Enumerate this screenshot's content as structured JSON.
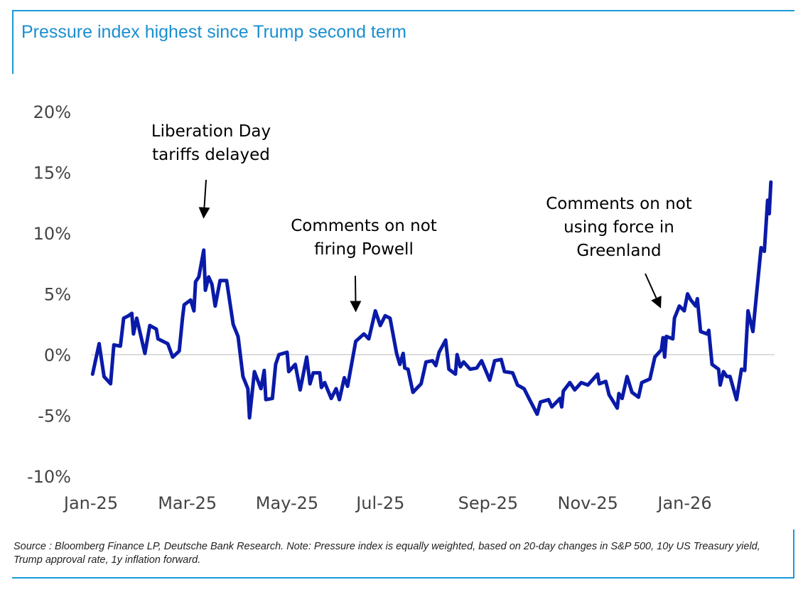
{
  "title": "Pressure index highest since Trump second term",
  "footnote": "Source : Bloomberg Finance LP, Deutsche Bank Research. Note: Pressure index is equally weighted, based on 20-day changes in S&P 500, 10y US Treasury yield, Trump approval rate, 1y inflation forward.",
  "colors": {
    "accent": "#1a9ad6",
    "line": "#0a1aa8",
    "zero_line": "#d0d0d0",
    "text": "#000000",
    "ticks": "#444444"
  },
  "chart_data": {
    "type": "line",
    "title": "Pressure index highest since Trump second term",
    "xlabel": "",
    "ylabel": "",
    "x_unit": "days since 2025-01-01",
    "xlim": [
      0,
      420
    ],
    "ylim": [
      -10,
      20
    ],
    "yticks": [
      {
        "value": 20,
        "label": "20%"
      },
      {
        "value": 15,
        "label": "15%"
      },
      {
        "value": 10,
        "label": "10%"
      },
      {
        "value": 5,
        "label": "5%"
      },
      {
        "value": 0,
        "label": "0%"
      },
      {
        "value": -5,
        "label": "-5%"
      },
      {
        "value": -10,
        "label": "-10%"
      }
    ],
    "xticks": [
      {
        "value": 0,
        "label": "Jan-25"
      },
      {
        "value": 59,
        "label": "Mar-25"
      },
      {
        "value": 120,
        "label": "May-25"
      },
      {
        "value": 181,
        "label": "Jul-25"
      },
      {
        "value": 243,
        "label": "Sep-25"
      },
      {
        "value": 304,
        "label": "Nov-25"
      },
      {
        "value": 365,
        "label": "Jan-26"
      }
    ],
    "grid": "zero line only",
    "series": [
      {
        "name": "Pressure index",
        "points": [
          [
            1,
            -1.6
          ],
          [
            5,
            0.9
          ],
          [
            8,
            -1.8
          ],
          [
            12,
            -2.4
          ],
          [
            14,
            0.8
          ],
          [
            18,
            0.7
          ],
          [
            20,
            3.0
          ],
          [
            23,
            3.2
          ],
          [
            25,
            3.4
          ],
          [
            26,
            1.7
          ],
          [
            28,
            3.0
          ],
          [
            33,
            0.1
          ],
          [
            36,
            2.4
          ],
          [
            40,
            2.1
          ],
          [
            41,
            1.3
          ],
          [
            47,
            0.9
          ],
          [
            50,
            -0.2
          ],
          [
            54,
            0.3
          ],
          [
            56,
            3.0
          ],
          [
            57,
            4.1
          ],
          [
            61,
            4.5
          ],
          [
            63,
            3.6
          ],
          [
            64,
            6.0
          ],
          [
            66,
            6.4
          ],
          [
            69,
            8.6
          ],
          [
            70,
            5.3
          ],
          [
            72,
            6.4
          ],
          [
            74,
            5.8
          ],
          [
            76,
            4.0
          ],
          [
            79,
            6.1
          ],
          [
            83,
            6.1
          ],
          [
            87,
            2.5
          ],
          [
            90,
            1.5
          ],
          [
            93,
            -1.8
          ],
          [
            96,
            -2.8
          ],
          [
            97,
            -5.2
          ],
          [
            100,
            -1.4
          ],
          [
            104,
            -2.8
          ],
          [
            106,
            -1.3
          ],
          [
            107,
            -3.7
          ],
          [
            111,
            -3.6
          ],
          [
            113,
            -0.8
          ],
          [
            115,
            0.0
          ],
          [
            120,
            0.2
          ],
          [
            121,
            -1.4
          ],
          [
            125,
            -0.8
          ],
          [
            128,
            -2.9
          ],
          [
            132,
            -0.2
          ],
          [
            134,
            -2.4
          ],
          [
            136,
            -1.5
          ],
          [
            140,
            -1.5
          ],
          [
            141,
            -2.7
          ],
          [
            143,
            -2.3
          ],
          [
            147,
            -3.6
          ],
          [
            150,
            -2.8
          ],
          [
            152,
            -3.7
          ],
          [
            155,
            -1.9
          ],
          [
            157,
            -2.6
          ],
          [
            162,
            1.1
          ],
          [
            167,
            1.7
          ],
          [
            170,
            1.3
          ],
          [
            174,
            3.6
          ],
          [
            177,
            2.4
          ],
          [
            180,
            3.2
          ],
          [
            183,
            3.0
          ],
          [
            187,
            0.1
          ],
          [
            189,
            -0.8
          ],
          [
            191,
            0.1
          ],
          [
            192,
            -1.1
          ],
          [
            194,
            -1.2
          ],
          [
            197,
            -3.1
          ],
          [
            202,
            -2.4
          ],
          [
            205,
            -0.6
          ],
          [
            209,
            -0.5
          ],
          [
            211,
            -0.9
          ],
          [
            213,
            0.2
          ],
          [
            217,
            1.2
          ],
          [
            219,
            -1.2
          ],
          [
            223,
            -1.6
          ],
          [
            224,
            0.0
          ],
          [
            226,
            -1.0
          ],
          [
            228,
            -0.6
          ],
          [
            232,
            -1.2
          ],
          [
            236,
            -1.1
          ],
          [
            239,
            -0.5
          ],
          [
            244,
            -2.1
          ],
          [
            247,
            -0.5
          ],
          [
            251,
            -0.4
          ],
          [
            253,
            -1.4
          ],
          [
            258,
            -1.5
          ],
          [
            261,
            -2.5
          ],
          [
            265,
            -2.8
          ],
          [
            268,
            -3.6
          ],
          [
            273,
            -4.9
          ],
          [
            275,
            -3.9
          ],
          [
            280,
            -3.7
          ],
          [
            282,
            -4.3
          ],
          [
            287,
            -3.6
          ],
          [
            288,
            -4.3
          ],
          [
            289,
            -3.0
          ],
          [
            293,
            -2.3
          ],
          [
            296,
            -2.9
          ],
          [
            300,
            -2.3
          ],
          [
            304,
            -2.5
          ],
          [
            310,
            -1.6
          ],
          [
            311,
            -2.4
          ],
          [
            315,
            -2.2
          ],
          [
            317,
            -3.3
          ],
          [
            322,
            -4.4
          ],
          [
            323,
            -3.2
          ],
          [
            325,
            -3.6
          ],
          [
            328,
            -1.8
          ],
          [
            331,
            -3.1
          ],
          [
            335,
            -3.5
          ],
          [
            337,
            -2.3
          ],
          [
            342,
            -2.0
          ],
          [
            345,
            -0.2
          ],
          [
            349,
            0.4
          ],
          [
            350,
            1.4
          ],
          [
            351,
            -0.2
          ],
          [
            352,
            1.5
          ],
          [
            356,
            1.3
          ],
          [
            357,
            3.0
          ],
          [
            360,
            4.0
          ],
          [
            363,
            3.6
          ],
          [
            365,
            5.0
          ],
          [
            367,
            4.5
          ],
          [
            370,
            4.0
          ],
          [
            371,
            4.6
          ],
          [
            373,
            1.9
          ],
          [
            377,
            1.7
          ],
          [
            378,
            2.0
          ],
          [
            380,
            -0.8
          ],
          [
            384,
            -1.2
          ],
          [
            385,
            -2.5
          ],
          [
            387,
            -1.4
          ],
          [
            389,
            -1.8
          ],
          [
            391,
            -1.8
          ],
          [
            395,
            -3.7
          ],
          [
            398,
            -1.2
          ],
          [
            400,
            -1.3
          ],
          [
            402,
            3.6
          ],
          [
            405,
            1.9
          ],
          [
            410,
            8.8
          ],
          [
            412,
            8.5
          ],
          [
            414,
            12.7
          ],
          [
            415,
            11.6
          ],
          [
            416,
            14.2
          ]
        ]
      }
    ],
    "annotations": [
      {
        "lines": [
          "Liberation Day",
          "tariffs delayed"
        ],
        "target": [
          69,
          10.6
        ]
      },
      {
        "lines": [
          "Comments on not",
          "firing Powell"
        ],
        "target": [
          162,
          2.9
        ]
      },
      {
        "lines": [
          "Comments on not",
          "using force in",
          "Greenland"
        ],
        "target": [
          348,
          3.2
        ]
      }
    ]
  }
}
